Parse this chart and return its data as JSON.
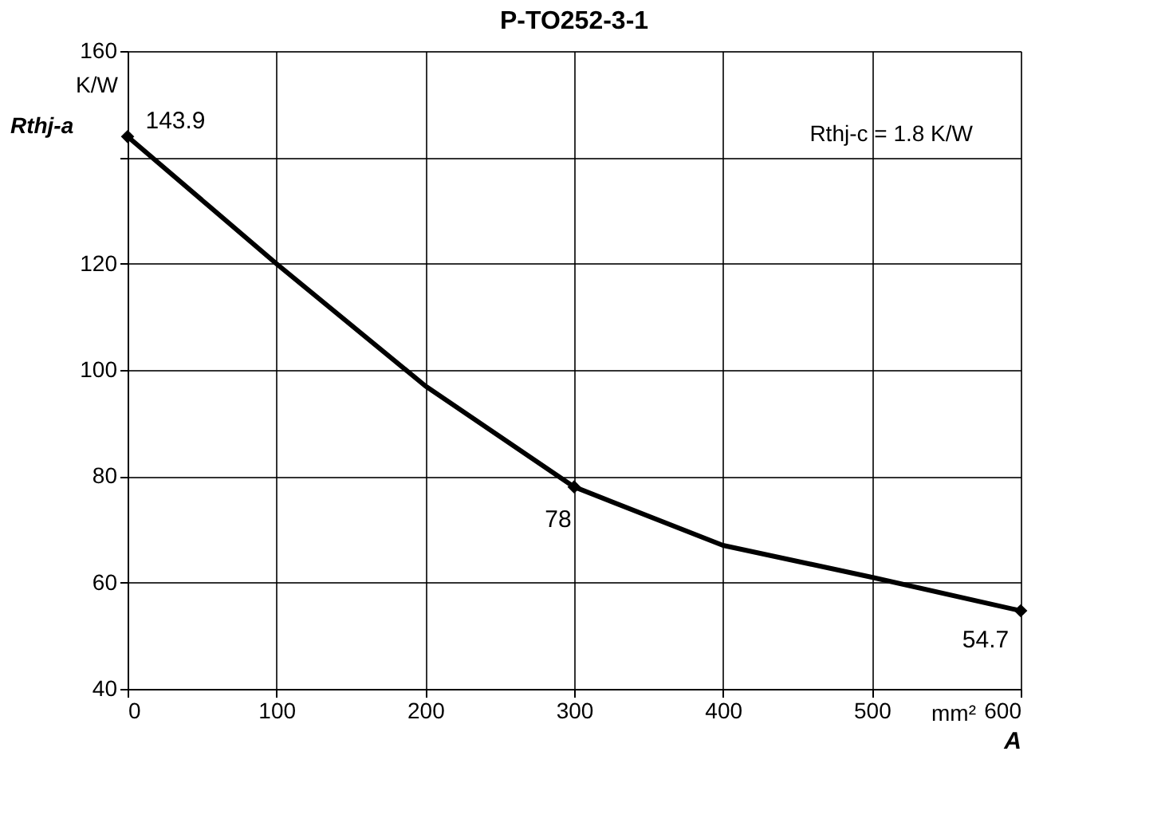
{
  "chart_data": {
    "type": "line",
    "title": "P-TO252-3-1",
    "xlabel": "A",
    "ylabel": "Rthj-a",
    "xlim": [
      0,
      600
    ],
    "xticks": [
      0,
      100,
      200,
      300,
      400,
      500,
      600
    ],
    "ylim": [
      40,
      160
    ],
    "yticks": [
      40,
      60,
      80,
      100,
      120,
      {
        "value": 140,
        "label": null
      },
      160
    ],
    "grid": true,
    "line_style": "solid",
    "series": [
      {
        "color": "#000000",
        "x": [
          0,
          100,
          200,
          300,
          400,
          500,
          600
        ],
        "values": [
          143.9,
          120,
          97,
          78,
          67,
          61,
          54.7
        ],
        "marker": "none"
      },
      {
        "type": "scatter",
        "color": "#000000",
        "x": [
          0,
          300,
          600
        ],
        "values": [
          143.9,
          78,
          54.7
        ],
        "marker": "diamond",
        "value_labels": [
          "143.9",
          "78",
          "54.7"
        ]
      }
    ],
    "annotations": [
      "K/W",
      "mm²",
      "Rthj-c = 1.8 K/W"
    ]
  }
}
